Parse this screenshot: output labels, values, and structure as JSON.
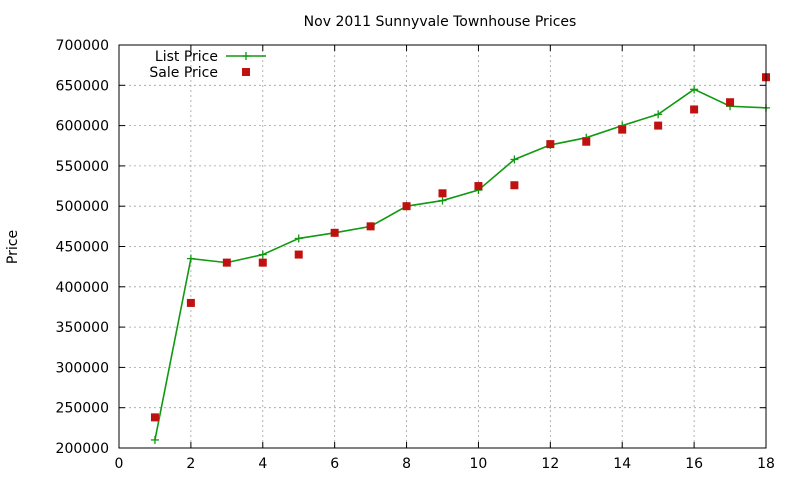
{
  "chart_data": {
    "type": "scatter",
    "title": "Nov 2011 Sunnyvale Townhouse Prices",
    "xlabel": "",
    "ylabel": "Price",
    "xlim": [
      0,
      18
    ],
    "ylim": [
      200000,
      700000
    ],
    "xticks": [
      0,
      2,
      4,
      6,
      8,
      10,
      12,
      14,
      16,
      18
    ],
    "yticks": [
      200000,
      250000,
      300000,
      350000,
      400000,
      450000,
      500000,
      550000,
      600000,
      650000,
      700000
    ],
    "grid": true,
    "legend_position": "top-left",
    "series": [
      {
        "name": "List Price",
        "style": "line-plus",
        "color": "#119911",
        "x": [
          1,
          2,
          3,
          4,
          5,
          6,
          7,
          8,
          9,
          10,
          11,
          12,
          13,
          14,
          15,
          16,
          17,
          18
        ],
        "y": [
          210000,
          435000,
          430000,
          440000,
          460000,
          467000,
          475000,
          500000,
          507000,
          520000,
          558000,
          576000,
          585000,
          600000,
          614000,
          645000,
          624000,
          622000
        ]
      },
      {
        "name": "Sale Price",
        "style": "square-marker",
        "color": "#c01010",
        "x": [
          1,
          2,
          3,
          4,
          5,
          6,
          7,
          8,
          9,
          10,
          11,
          12,
          13,
          14,
          15,
          16,
          17,
          18
        ],
        "y": [
          238000,
          380000,
          430000,
          430000,
          440000,
          467000,
          475000,
          500000,
          516000,
          525000,
          526000,
          577000,
          580000,
          595000,
          600000,
          620000,
          629000,
          660000
        ]
      }
    ]
  }
}
